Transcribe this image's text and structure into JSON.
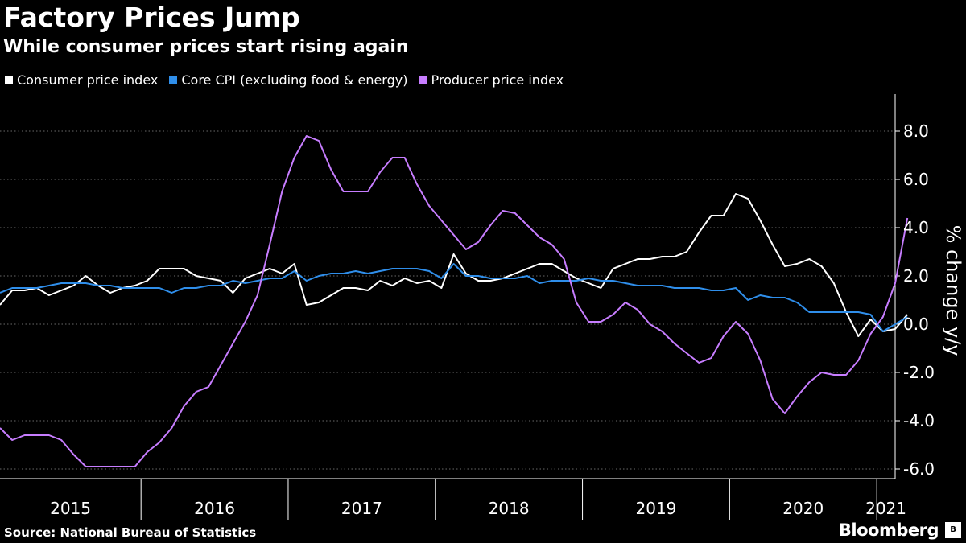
{
  "title": "Factory Prices Jump",
  "subtitle": "While consumer prices start rising again",
  "source": "Source: National Bureau of Statistics",
  "brand": "Bloomberg",
  "brand_badge": "B",
  "chart_data": {
    "type": "line",
    "ylabel": "% change y/y",
    "ylim": [
      -6.4,
      9.2
    ],
    "yticks": [
      -6,
      -4,
      -2,
      0,
      2,
      4,
      6,
      8
    ],
    "ytick_labels": [
      "-6.0",
      "-4.0",
      "-2.0",
      "0.0",
      "2.0",
      "4.0",
      "6.0",
      "8.0"
    ],
    "x_start": "2015-01",
    "x_end": "2021-02",
    "years": [
      {
        "label": "2015"
      },
      {
        "label": "2016"
      },
      {
        "label": "2017"
      },
      {
        "label": "2018"
      },
      {
        "label": "2019"
      },
      {
        "label": "2020"
      },
      {
        "label": "2021"
      }
    ],
    "grid": "horizontal dotted",
    "legend_position": "top-left",
    "series": [
      {
        "name": "Consumer price index",
        "color": "#ffffff",
        "values": [
          0.8,
          1.4,
          1.4,
          1.5,
          1.2,
          1.4,
          1.6,
          2.0,
          1.6,
          1.3,
          1.5,
          1.6,
          1.8,
          2.3,
          2.3,
          2.3,
          2.0,
          1.9,
          1.8,
          1.3,
          1.9,
          2.1,
          2.3,
          2.1,
          2.5,
          0.8,
          0.9,
          1.2,
          1.5,
          1.5,
          1.4,
          1.8,
          1.6,
          1.9,
          1.7,
          1.8,
          1.5,
          2.9,
          2.1,
          1.8,
          1.8,
          1.9,
          2.1,
          2.3,
          2.5,
          2.5,
          2.2,
          1.9,
          1.7,
          1.5,
          2.3,
          2.5,
          2.7,
          2.7,
          2.8,
          2.8,
          3.0,
          3.8,
          4.5,
          4.5,
          5.4,
          5.2,
          4.3,
          3.3,
          2.4,
          2.5,
          2.7,
          2.4,
          1.7,
          0.5,
          -0.5,
          0.2,
          -0.3,
          -0.2,
          0.4
        ]
      },
      {
        "name": "Core CPI (excluding food & energy)",
        "color": "#2f8eea",
        "values": [
          1.3,
          1.5,
          1.5,
          1.5,
          1.6,
          1.7,
          1.7,
          1.7,
          1.6,
          1.6,
          1.5,
          1.5,
          1.5,
          1.5,
          1.3,
          1.5,
          1.5,
          1.6,
          1.6,
          1.8,
          1.7,
          1.8,
          1.9,
          1.9,
          2.2,
          1.8,
          2.0,
          2.1,
          2.1,
          2.2,
          2.1,
          2.2,
          2.3,
          2.3,
          2.3,
          2.2,
          1.9,
          2.5,
          2.0,
          2.0,
          1.9,
          1.9,
          1.9,
          2.0,
          1.7,
          1.8,
          1.8,
          1.8,
          1.9,
          1.8,
          1.8,
          1.7,
          1.6,
          1.6,
          1.6,
          1.5,
          1.5,
          1.5,
          1.4,
          1.4,
          1.5,
          1.0,
          1.2,
          1.1,
          1.1,
          0.9,
          0.5,
          0.5,
          0.5,
          0.5,
          0.5,
          0.4,
          -0.3,
          0.0,
          0.3
        ]
      },
      {
        "name": "Producer price index",
        "color": "#c77dff",
        "values": [
          -4.3,
          -4.8,
          -4.6,
          -4.6,
          -4.6,
          -4.8,
          -5.4,
          -5.9,
          -5.9,
          -5.9,
          -5.9,
          -5.9,
          -5.3,
          -4.9,
          -4.3,
          -3.4,
          -2.8,
          -2.6,
          -1.7,
          -0.8,
          0.1,
          1.2,
          3.3,
          5.5,
          6.9,
          7.8,
          7.6,
          6.4,
          5.5,
          5.5,
          5.5,
          6.3,
          6.9,
          6.9,
          5.8,
          4.9,
          4.3,
          3.7,
          3.1,
          3.4,
          4.1,
          4.7,
          4.6,
          4.1,
          3.6,
          3.3,
          2.7,
          0.9,
          0.1,
          0.1,
          0.4,
          0.9,
          0.6,
          0.0,
          -0.3,
          -0.8,
          -1.2,
          -1.6,
          -1.4,
          -0.5,
          0.1,
          -0.4,
          -1.5,
          -3.1,
          -3.7,
          -3.0,
          -2.4,
          -2.0,
          -2.1,
          -2.1,
          -1.5,
          -0.4,
          0.3,
          1.7,
          4.4
        ]
      }
    ]
  }
}
